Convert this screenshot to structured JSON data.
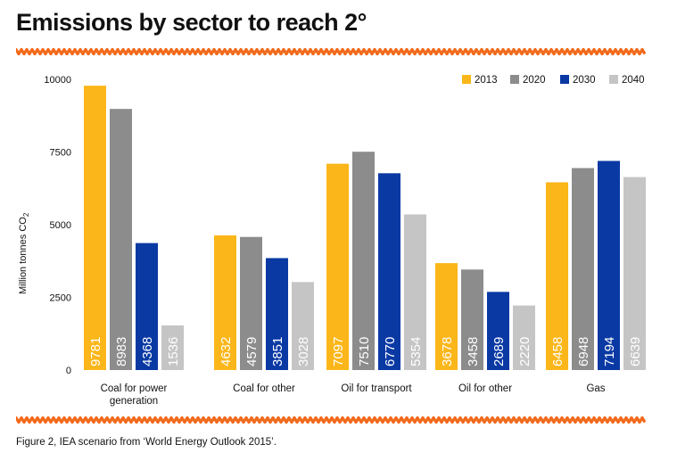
{
  "header": {
    "title": "Emissions by sector to reach 2°"
  },
  "footer": {
    "caption": "Figure 2, IEA scenario from ‘World Energy Outlook 2015’."
  },
  "colors": {
    "accent_wave": "#f26a1b"
  },
  "chart_data": {
    "type": "bar",
    "ylabel": "Million tonnes CO",
    "ylabel_subscript": "2",
    "ylim": [
      0,
      10000
    ],
    "yticks": [
      0,
      2500,
      5000,
      7500,
      10000
    ],
    "grid": false,
    "legend_position": "top-right",
    "categories": [
      "Coal for power generation",
      "Coal for other",
      "Oil for transport",
      "Oil for other",
      "Gas"
    ],
    "category_lines": [
      [
        "Coal for power",
        "generation"
      ],
      [
        "Coal for other"
      ],
      [
        "Oil for transport"
      ],
      [
        "Oil for other"
      ],
      [
        "Gas"
      ]
    ],
    "series": [
      {
        "name": "2013",
        "color": "#fbb619",
        "values": [
          9781,
          4632,
          7097,
          3678,
          6458
        ]
      },
      {
        "name": "2020",
        "color": "#8c8c8c",
        "values": [
          8983,
          4579,
          7510,
          3458,
          6948
        ]
      },
      {
        "name": "2030",
        "color": "#0a39a4",
        "values": [
          4368,
          3851,
          6770,
          2689,
          7194
        ]
      },
      {
        "name": "2040",
        "color": "#c5c5c5",
        "values": [
          1536,
          3028,
          5354,
          2220,
          6639
        ]
      }
    ]
  }
}
